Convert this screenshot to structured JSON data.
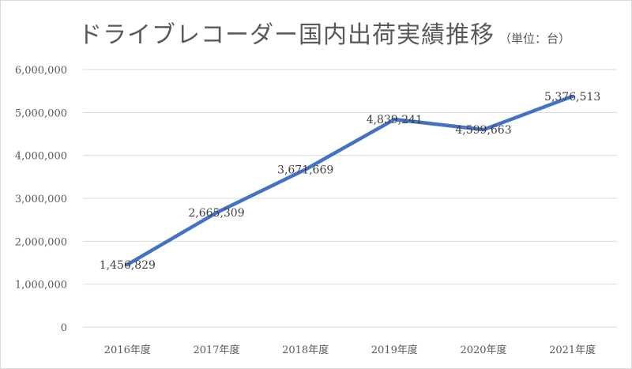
{
  "chart_data": {
    "type": "line",
    "title": "ドライブレコーダー国内出荷実績推移",
    "subtitle": "（単位：台）",
    "categories": [
      "2016年度",
      "2017年度",
      "2018年度",
      "2019年度",
      "2020年度",
      "2021年度"
    ],
    "series": [
      {
        "values": [
          1456829,
          2665309,
          3671669,
          4839241,
          4599663,
          5376513
        ],
        "labels": [
          "1,456,829",
          "2,665,309",
          "3,671,669",
          "4,839,241",
          "4,599,663",
          "5,376,513"
        ]
      }
    ],
    "ylim": [
      0,
      6000000
    ],
    "yticks": [
      0,
      1000000,
      2000000,
      3000000,
      4000000,
      5000000,
      6000000
    ],
    "ytick_labels": [
      "0",
      "1,000,000",
      "2,000,000",
      "3,000,000",
      "4,000,000",
      "5,000,000",
      "6,000,000"
    ],
    "grid": true,
    "line_color": "#4472c4"
  }
}
